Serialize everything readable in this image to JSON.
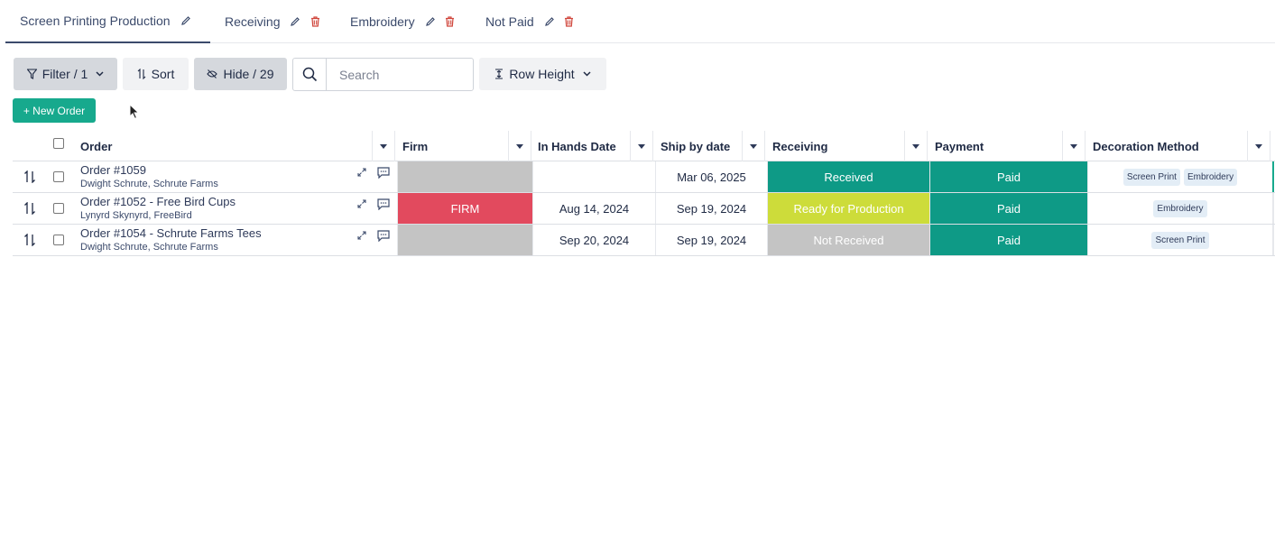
{
  "tabs": [
    {
      "label": "Screen Printing Production",
      "active": true,
      "deletable": false
    },
    {
      "label": "Receiving",
      "active": false,
      "deletable": true
    },
    {
      "label": "Embroidery",
      "active": false,
      "deletable": true
    },
    {
      "label": "Not Paid",
      "active": false,
      "deletable": true
    }
  ],
  "toolbar": {
    "filter_label": "Filter / 1",
    "sort_label": "Sort",
    "hide_label": "Hide / 29",
    "search_placeholder": "Search",
    "row_height_label": "Row Height"
  },
  "new_order_label": "+ New Order",
  "columns": {
    "order": "Order",
    "firm": "Firm",
    "in_hands_date": "In Hands Date",
    "ship_by_date": "Ship by date",
    "receiving": "Receiving",
    "payment": "Payment",
    "decoration_method": "Decoration Method"
  },
  "rows": [
    {
      "title": "Order #1059",
      "customer": "Dwight Schrute, Schrute Farms",
      "firm": "",
      "in_hands_date": "",
      "ship_by_date": "Mar 06, 2025",
      "receiving": "Received",
      "payment": "Paid",
      "decoration": [
        "Screen Print",
        "Embroidery"
      ]
    },
    {
      "title": "Order #1052 - Free Bird Cups",
      "customer": "Lynyrd Skynyrd, FreeBird",
      "firm": "FIRM",
      "in_hands_date": "Aug 14, 2024",
      "ship_by_date": "Sep 19, 2024",
      "receiving": "Ready for Production",
      "payment": "Paid",
      "decoration": [
        "Embroidery"
      ]
    },
    {
      "title": "Order #1054 - Schrute Farms Tees",
      "customer": "Dwight Schrute, Schrute Farms",
      "firm": "",
      "in_hands_date": "Sep 20, 2024",
      "ship_by_date": "Sep 19, 2024",
      "receiving": "Not Received",
      "payment": "Paid",
      "decoration": [
        "Screen Print"
      ]
    }
  ],
  "colors": {
    "accent": "#17a98d",
    "firm_red": "#e24a5e",
    "firm_grey": "#c4c4c4",
    "received_green": "#0e9a86",
    "ready_yellow": "#cddc3a",
    "not_received_grey": "#c4c4c4",
    "paid_green": "#0e9a86"
  }
}
